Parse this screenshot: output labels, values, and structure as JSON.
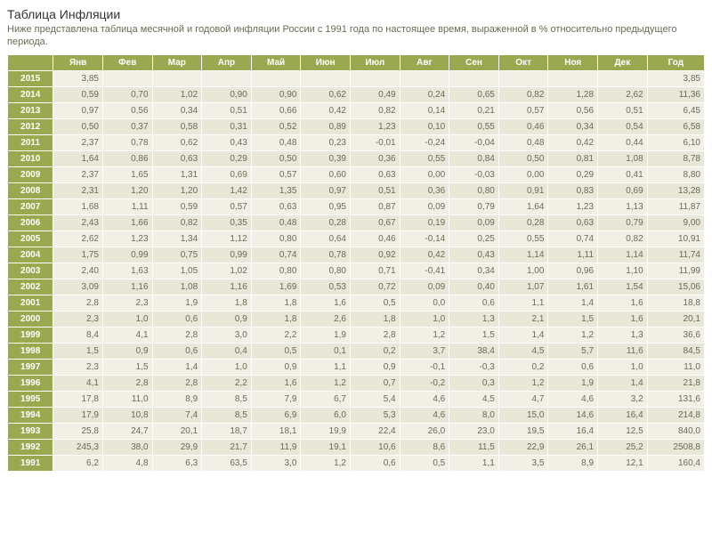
{
  "title": "Таблица Инфляции",
  "subtitle": "Ниже представлена таблица месячной и годовой инфляции России с 1991 года по настоящее время, выраженной в % относительно предыдущего периода.",
  "header_bg": "#9aa84f",
  "header_text": "#ffffff",
  "year_cell_bg": "#9aa84f",
  "year_cell_text": "#ffffff",
  "row_odd_bg": "#f2f0e6",
  "row_even_bg": "#e9e7d8",
  "cell_text": "#6a6a55",
  "font_size": 10,
  "columns": [
    "",
    "Янв",
    "Фев",
    "Мар",
    "Апр",
    "Май",
    "Июн",
    "Июл",
    "Авг",
    "Сен",
    "Окт",
    "Ноя",
    "Дек",
    "Год"
  ],
  "rows": [
    {
      "year": "2015",
      "cells": [
        "3,85",
        "",
        "",
        "",
        "",
        "",
        "",
        "",
        "",
        "",
        "",
        "",
        "3,85"
      ]
    },
    {
      "year": "2014",
      "cells": [
        "0,59",
        "0,70",
        "1,02",
        "0,90",
        "0,90",
        "0,62",
        "0,49",
        "0,24",
        "0,65",
        "0,82",
        "1,28",
        "2,62",
        "11,36"
      ]
    },
    {
      "year": "2013",
      "cells": [
        "0,97",
        "0,56",
        "0,34",
        "0,51",
        "0,66",
        "0,42",
        "0,82",
        "0,14",
        "0,21",
        "0,57",
        "0,56",
        "0,51",
        "6,45"
      ]
    },
    {
      "year": "2012",
      "cells": [
        "0,50",
        "0,37",
        "0,58",
        "0,31",
        "0,52",
        "0,89",
        "1,23",
        "0,10",
        "0,55",
        "0,46",
        "0,34",
        "0,54",
        "6,58"
      ]
    },
    {
      "year": "2011",
      "cells": [
        "2,37",
        "0,78",
        "0,62",
        "0,43",
        "0,48",
        "0,23",
        "-0,01",
        "-0,24",
        "-0,04",
        "0,48",
        "0,42",
        "0,44",
        "6,10"
      ]
    },
    {
      "year": "2010",
      "cells": [
        "1,64",
        "0,86",
        "0,63",
        "0,29",
        "0,50",
        "0,39",
        "0,36",
        "0,55",
        "0,84",
        "0,50",
        "0,81",
        "1,08",
        "8,78"
      ]
    },
    {
      "year": "2009",
      "cells": [
        "2,37",
        "1,65",
        "1,31",
        "0,69",
        "0,57",
        "0,60",
        "0,63",
        "0,00",
        "-0,03",
        "0,00",
        "0,29",
        "0,41",
        "8,80"
      ]
    },
    {
      "year": "2008",
      "cells": [
        "2,31",
        "1,20",
        "1,20",
        "1,42",
        "1,35",
        "0,97",
        "0,51",
        "0,36",
        "0,80",
        "0,91",
        "0,83",
        "0,69",
        "13,28"
      ]
    },
    {
      "year": "2007",
      "cells": [
        "1,68",
        "1,11",
        "0,59",
        "0,57",
        "0,63",
        "0,95",
        "0,87",
        "0,09",
        "0,79",
        "1,64",
        "1,23",
        "1,13",
        "11,87"
      ]
    },
    {
      "year": "2006",
      "cells": [
        "2,43",
        "1,66",
        "0,82",
        "0,35",
        "0,48",
        "0,28",
        "0,67",
        "0,19",
        "0,09",
        "0,28",
        "0,63",
        "0,79",
        "9,00"
      ]
    },
    {
      "year": "2005",
      "cells": [
        "2,62",
        "1,23",
        "1,34",
        "1,12",
        "0,80",
        "0,64",
        "0,46",
        "-0,14",
        "0,25",
        "0,55",
        "0,74",
        "0,82",
        "10,91"
      ]
    },
    {
      "year": "2004",
      "cells": [
        "1,75",
        "0,99",
        "0,75",
        "0,99",
        "0,74",
        "0,78",
        "0,92",
        "0,42",
        "0,43",
        "1,14",
        "1,11",
        "1,14",
        "11,74"
      ]
    },
    {
      "year": "2003",
      "cells": [
        "2,40",
        "1,63",
        "1,05",
        "1,02",
        "0,80",
        "0,80",
        "0,71",
        "-0,41",
        "0,34",
        "1,00",
        "0,96",
        "1,10",
        "11,99"
      ]
    },
    {
      "year": "2002",
      "cells": [
        "3,09",
        "1,16",
        "1,08",
        "1,16",
        "1,69",
        "0,53",
        "0,72",
        "0,09",
        "0,40",
        "1,07",
        "1,61",
        "1,54",
        "15,06"
      ]
    },
    {
      "year": "2001",
      "cells": [
        "2,8",
        "2,3",
        "1,9",
        "1,8",
        "1,8",
        "1,6",
        "0,5",
        "0,0",
        "0,6",
        "1,1",
        "1,4",
        "1,6",
        "18,8"
      ]
    },
    {
      "year": "2000",
      "cells": [
        "2,3",
        "1,0",
        "0,6",
        "0,9",
        "1,8",
        "2,6",
        "1,8",
        "1,0",
        "1,3",
        "2,1",
        "1,5",
        "1,6",
        "20,1"
      ]
    },
    {
      "year": "1999",
      "cells": [
        "8,4",
        "4,1",
        "2,8",
        "3,0",
        "2,2",
        "1,9",
        "2,8",
        "1,2",
        "1,5",
        "1,4",
        "1,2",
        "1,3",
        "36,6"
      ]
    },
    {
      "year": "1998",
      "cells": [
        "1,5",
        "0,9",
        "0,6",
        "0,4",
        "0,5",
        "0,1",
        "0,2",
        "3,7",
        "38,4",
        "4,5",
        "5,7",
        "11,6",
        "84,5"
      ]
    },
    {
      "year": "1997",
      "cells": [
        "2,3",
        "1,5",
        "1,4",
        "1,0",
        "0,9",
        "1,1",
        "0,9",
        "-0,1",
        "-0,3",
        "0,2",
        "0,6",
        "1,0",
        "11,0"
      ]
    },
    {
      "year": "1996",
      "cells": [
        "4,1",
        "2,8",
        "2,8",
        "2,2",
        "1,6",
        "1,2",
        "0,7",
        "-0,2",
        "0,3",
        "1,2",
        "1,9",
        "1,4",
        "21,8"
      ]
    },
    {
      "year": "1995",
      "cells": [
        "17,8",
        "11,0",
        "8,9",
        "8,5",
        "7,9",
        "6,7",
        "5,4",
        "4,6",
        "4,5",
        "4,7",
        "4,6",
        "3,2",
        "131,6"
      ]
    },
    {
      "year": "1994",
      "cells": [
        "17,9",
        "10,8",
        "7,4",
        "8,5",
        "6,9",
        "6,0",
        "5,3",
        "4,6",
        "8,0",
        "15,0",
        "14,6",
        "16,4",
        "214,8"
      ]
    },
    {
      "year": "1993",
      "cells": [
        "25,8",
        "24,7",
        "20,1",
        "18,7",
        "18,1",
        "19,9",
        "22,4",
        "26,0",
        "23,0",
        "19,5",
        "16,4",
        "12,5",
        "840,0"
      ]
    },
    {
      "year": "1992",
      "cells": [
        "245,3",
        "38,0",
        "29,9",
        "21,7",
        "11,9",
        "19,1",
        "10,6",
        "8,6",
        "11,5",
        "22,9",
        "26,1",
        "25,2",
        "2508,8"
      ]
    },
    {
      "year": "1991",
      "cells": [
        "6,2",
        "4,8",
        "6,3",
        "63,5",
        "3,0",
        "1,2",
        "0,6",
        "0,5",
        "1,1",
        "3,5",
        "8,9",
        "12,1",
        "160,4"
      ]
    }
  ]
}
